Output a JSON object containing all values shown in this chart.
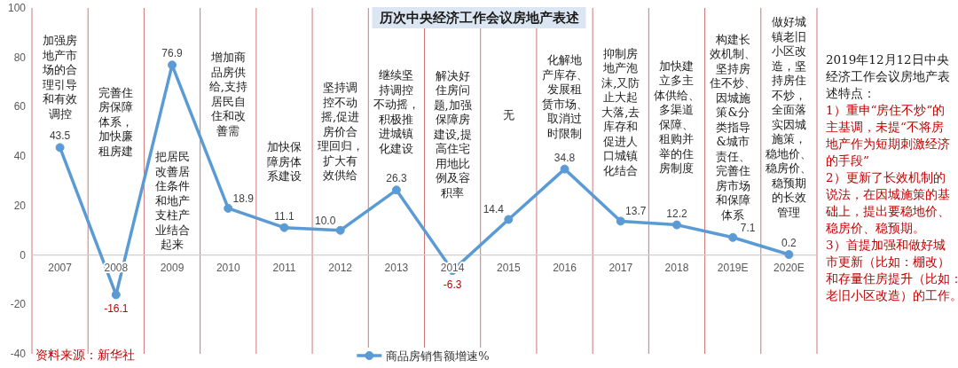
{
  "chart_data": [
    {
      "type": "line",
      "title": "历次中央经济工作会议房地产表述",
      "categories": [
        "2007",
        "2008",
        "2009",
        "2010",
        "2011",
        "2012",
        "2013",
        "2014",
        "2015",
        "2016",
        "2017",
        "2018",
        "2019E",
        "2020E"
      ],
      "series": [
        {
          "name": "商品房销售额增速%",
          "color": "#5b9bd5",
          "values": [
            43.5,
            -16.1,
            76.9,
            18.9,
            11.1,
            10.0,
            26.3,
            -6.3,
            14.4,
            34.8,
            13.7,
            12.2,
            7.1,
            0.2
          ],
          "value_labels": [
            "43.5",
            "-16.1",
            "76.9",
            "18.9",
            "11.1",
            "10.0",
            "26.3",
            "-6.3",
            "14.4",
            "34.8",
            "13.7",
            "12.2",
            "7.1",
            "0.2"
          ]
        }
      ],
      "ylim": [
        -40,
        100
      ],
      "yticks": [
        -40,
        -20,
        0,
        20,
        40,
        60,
        80,
        100
      ],
      "grid": "x",
      "legend": "bottom",
      "marker": "circle",
      "line_style": "solid",
      "annotations": [
        "加强房地产市场的合理引导和有效调控",
        "完善住房保障体系，加快廉租房建",
        "把居民改善居住条件和地产支柱产业结合起来",
        "增加商品房供给,支持居民自住和改善需",
        "加快保障房体系建设",
        "坚持调控不动摇,促进房价合理回归，扩大有效供给",
        "继续坚持调控不动摇，积极推进城镇化建设",
        "解决好住房问题,加强保障房建设,提高住宅用地比例及容积率",
        "无",
        "化解地产库存、发展租赁市场、取消过时限制",
        "抑制房地产泡沫,又防止大起大落,去库存和促进人口城镇化结合",
        "加快建立多主体供给、多渠道保障、租购并举的住房制度",
        "构建长效机制、坚持房住不炒、因城施策&分类指导&城市责任、完善住房市场和保障体系",
        "做好城镇老旧小区改造，坚持房住不炒，全面落实因城施策，稳地价、稳房价、稳预期的长效管理",
        "资料来源：新华社"
      ]
    },
    {
      "type": "other",
      "title": "2019年12月12日中央经济工作会议房地产表述特点：",
      "annotations": [
        "1）重申“房住不炒”的主基调，未提“不将房地产作为短期刺激经济的手段”",
        "2）更新了长效机制的说法，在因城施策的基础上，提出要稳地价、稳房价、稳预期。",
        "3）首提加强和做好城市更新（比如：棚改）和存量住房提升（比如：老旧小区改造）的工作。"
      ]
    }
  ]
}
